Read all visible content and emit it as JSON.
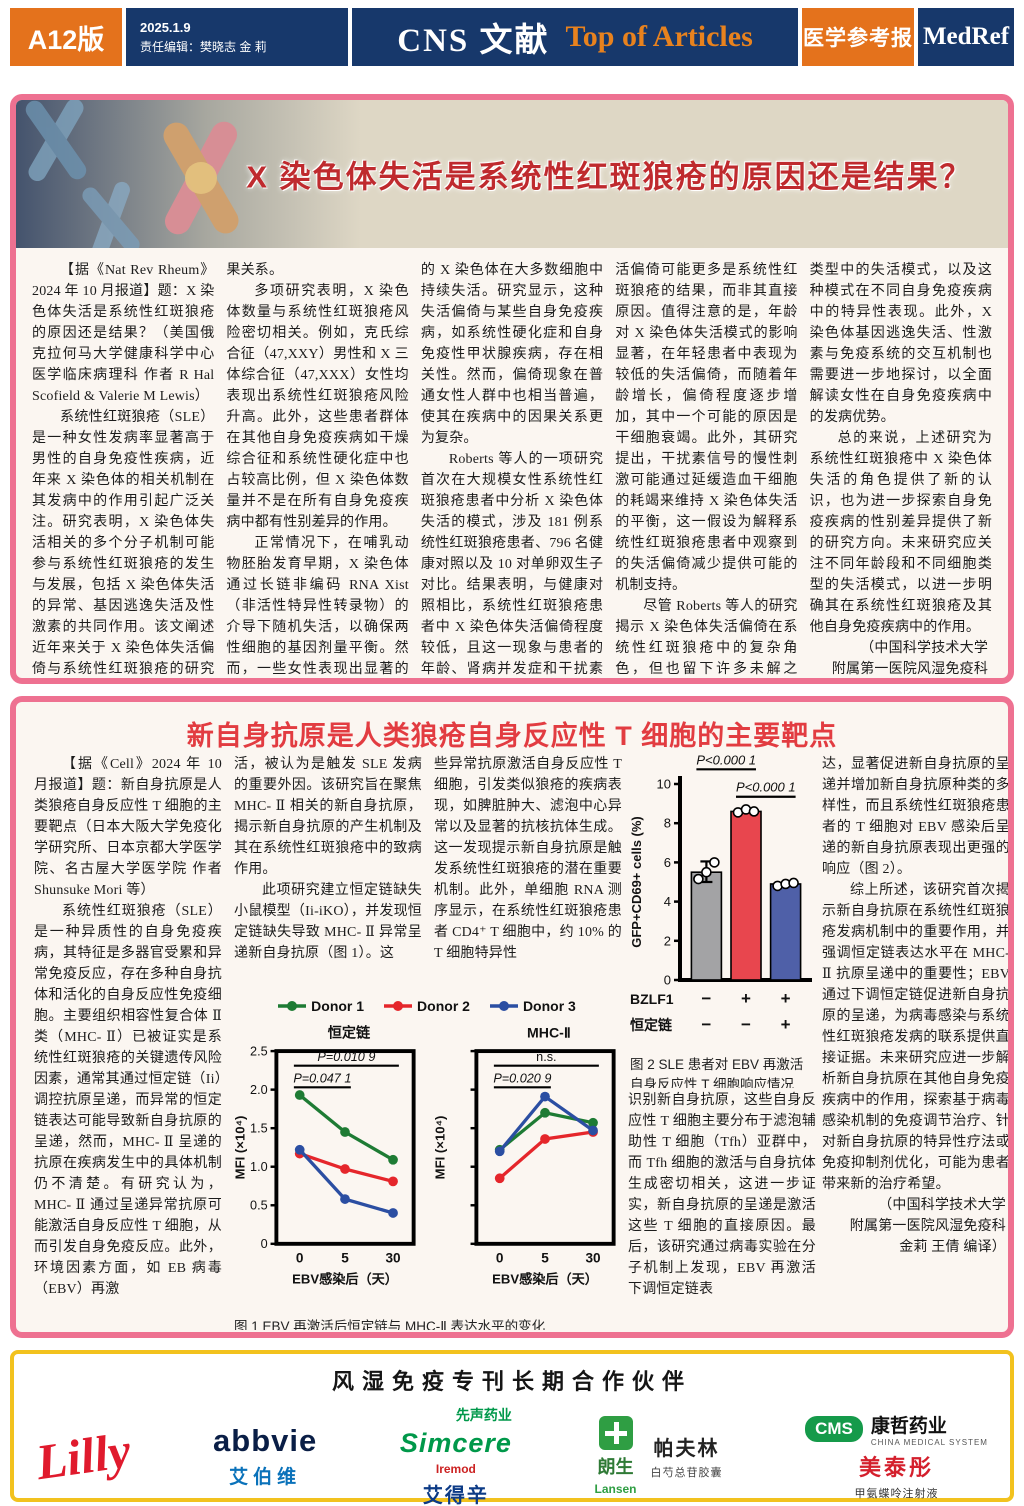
{
  "header": {
    "edition": "A12版",
    "date": "2025.1.9",
    "editors": "责任编辑：樊晓志 金 莉",
    "masthead_cn": "CNS 文献",
    "masthead_en": "Top of Articles",
    "paper_cn": "医学参考报",
    "paper_en": "MedRef"
  },
  "colors": {
    "navy": "#17386b",
    "orange": "#e4721c",
    "pink_border": "#ee7191",
    "headline_red": "#bf2a2e",
    "title2_red": "#e23c41",
    "gold_border": "#f2c21e"
  },
  "article1": {
    "title": "X 染色体失活是系统性红斑狼疮的原因还是结果？",
    "cols": [
      [
        {
          "indent": true,
          "text": "【据《Nat Rev Rheum》2024 年 10 月报道】题：X 染色体失活是系统性红斑狼疮的原因还是结果？（美国俄克拉何马大学健康科学中心医学临床病理科 作者 R Hal Scofield & Valerie M Lewis）"
        },
        {
          "indent": true,
          "text": "系统性红斑狼疮（SLE）是一种女性发病率显著高于男性的自身免疫性疾病，近年来 X 染色体的相关机制在其发病中的作用引起广泛关注。研究表明，X 染色体失活相关的多个分子机制可能参与系统性红斑狼疮的发生与发展，包括 X 染色体失活的异常、基因逃逸失活及性激素的共同作用。该文阐述近年来关于 X 染色体失活偏倚与系统性红斑狼疮的研究进展，分析其在疾病中的因"
        }
      ],
      [
        {
          "indent": false,
          "text": "果关系。"
        },
        {
          "indent": true,
          "text": "多项研究表明，X 染色体数量与系统性红斑狼疮风险密切相关。例如，克氏综合征（47,XXY）男性和 X 三体综合征（47,XXX）女性均表现出系统性红斑狼疮风险升高。此外，这些患者群体在其他自身免疫疾病如干燥综合征和系统性硬化症中也占较高比例，但 X 染色体数量并不是在所有自身免疫疾病中都有性别差异的作用。"
        },
        {
          "indent": true,
          "text": "正常情况下，在哺乳动物胚胎发育早期，X 染色体通过长链非编码 RNA Xist（非活性特异性转录物）的介导下随机失活，以确保两性细胞的基因剂量平衡。然而，一些女性表现出显著的失活偏倚，即特定"
        }
      ],
      [
        {
          "indent": false,
          "text": "的 X 染色体在大多数细胞中持续失活。研究显示，这种失活偏倚与某些自身免疫疾病，如系统性硬化症和自身免疫性甲状腺疾病，存在相关性。然而，偏倚现象在普通女性人群中也相当普遍，使其在疾病中的因果关系更为复杂。"
        },
        {
          "indent": true,
          "text": "Roberts 等人的一项研究首次在大规模女性系统性红斑狼疮患者中分析 X 染色体失活的模式，涉及 181 例系统性红斑狼疮患者、796 名健康对照以及 10 对单卵双生子对比。结果表明，与健康对照相比，系统性红斑狼疮患者中 X 染色体失活偏倚程度较低，且这一现象与患者的年龄、肾病并发症和干扰素基因表达存在显著关联。这一发现暗示 X 染色体失"
        }
      ],
      [
        {
          "indent": false,
          "text": "活偏倚可能更多是系统性红斑狼疮的结果，而非其直接原因。值得注意的是，年龄对 X 染色体失活模式的影响显著，在年轻患者中表现为较低的失活偏倚，而随着年龄增长，偏倚程度逐步增加，其中一个可能的原因是干细胞衰竭。此外，其研究提出，干扰素信号的慢性刺激可能通过延缓造血干细胞的耗竭来维持 X 染色体失活的平衡，这一假设为解释系统性红斑狼疮患者中观察到的失活偏倚减少提供可能的机制支持。"
        },
        {
          "indent": true,
          "text": "尽管 Roberts 等人的研究揭示 X 染色体失活偏倚在系统性红斑狼疮中的复杂角色，但也留下许多未解之谜。未来研究需要更广泛地关注不同细胞"
        }
      ],
      [
        {
          "indent": false,
          "text": "类型中的失活模式，以及这种模式在不同自身免疫疾病中的特异性表现。此外，X 染色体基因逃逸失活、性激素与免疫系统的交互机制也需要进一步地探讨，以全面解读女性在自身免疫疾病中的发病优势。"
        },
        {
          "indent": true,
          "text": "总的来说，上述研究为系统性红斑狼疮中 X 染色体失活的角色提供了新的认识，也为进一步探索自身免疫疾病的性别差异提供了新的研究方向。未来研究应关注不同年龄段和不同细胞类型的失活模式，以进一步明确其在系统性红斑狼疮及其他自身免疫疾病中的作用。"
        },
        {
          "indent": false,
          "align": "right",
          "text": "（中国科学技术大学"
        },
        {
          "indent": false,
          "align": "right",
          "text": "附属第一医院风湿免疫科"
        },
        {
          "indent": false,
          "align": "right",
          "text": "金莉 王倩 编译）"
        }
      ]
    ]
  },
  "article2": {
    "title": "新自身抗原是人类狼疮自身反应性 T 细胞的主要靶点",
    "cols": [
      [
        {
          "indent": true,
          "text": "【据《Cell》2024 年 10 月报道】题：新自身抗原是人类狼疮自身反应性 T 细胞的主要靶点（日本大阪大学免疫化学研究所、日本京都大学医学院、名古屋大学医学院 作者 Shunsuke Mori 等）"
        },
        {
          "indent": true,
          "text": "系统性红斑狼疮（SLE）是一种异质性的自身免疫疾病，其特征是多器官受累和异常免疫反应，存在多种自身抗体和活化的自身反应性免疫细胞。主要组织相容性复合体 Ⅱ 类（MHC- Ⅱ）已被证实是系统性红斑狼疮的关键遗传风险因素，通常其通过恒定链（Ii）调控抗原呈递，而异常的恒定链表达可能导致新自身抗原的呈递，然而，MHC- Ⅱ 呈递的抗原在疾病发生中的具体机制仍不清楚。有研究认为，MHC- Ⅱ 通过呈递异常抗原可能激活自身反应性 T 细胞，从而引发自身免疫反应。此外，环境因素方面，如 EB 病毒（EBV）再激"
        }
      ],
      [
        {
          "indent": false,
          "text": "活，被认为是触发 SLE 发病的重要外因。该研究旨在聚焦 MHC- Ⅱ 相关的新自身抗原，揭示新自身抗原的产生机制及其在系统性红斑狼疮中的致病作用。"
        },
        {
          "indent": true,
          "text": "此项研究建立恒定链缺失小鼠模型（Ii-iKO），并发现恒定链缺失导致 MHC- Ⅱ 异常呈递新自身抗原（图 1）。这"
        }
      ],
      [
        {
          "indent": false,
          "text": "些异常抗原激活自身反应性 T 细胞，引发类似狼疮的疾病表现，如脾脏肿大、滤泡中心异常以及显著的抗核抗体生成。这一发现提示新自身抗原是触发系统性红斑狼疮的潜在重要机制。此外，单细胞 RNA 测序显示，在系统性红斑狼疮患者 CD4⁺ T 细胞中，约 10% 的 T 细胞特异性"
        }
      ],
      [
        {
          "indent": false,
          "text": "识别新自身抗原，这些自身反应性 T 细胞主要分布于滤泡辅助性 T 细胞（Tfh）亚群中，而 Tfh 细胞的激活与自身抗体生成密切相关，这进一步证实，新自身抗原的呈递是激活这些 T 细胞的直接原因。最后，该研究通过病毒实验在分子机制上发现，EBV 再激活下调恒定链表"
        }
      ],
      [
        {
          "indent": false,
          "text": "达，显著促进新自身抗原的呈递并增加新自身抗原种类的多样性，而且系统性红斑狼疮患者的 T 细胞对 EBV 感染后呈递的新自身抗原表现出更强的响应（图 2）。"
        },
        {
          "indent": true,
          "text": "综上所述，该研究首次揭示新自身抗原在系统性红斑狼疮发病机制中的重要作用，并强调恒定链表达水平在 MHC- Ⅱ 抗原呈递中的重要性；EBV 通过下调恒定链促进新自身抗原的呈递，为病毒感染与系统性红斑狼疮发病的联系提供直接证据。未来研究应进一步解析新自身抗原在其他自身免疫疾病中的作用，探索基于病毒感染机制的免疫调节治疗、针对新自身抗原的特异性疗法或免疫抑制剂优化，可能为患者带来新的治疗希望。"
        },
        {
          "indent": false,
          "align": "right",
          "text": "（中国科学技术大学"
        },
        {
          "indent": false,
          "align": "right",
          "text": "附属第一医院风湿免疫科"
        },
        {
          "indent": false,
          "align": "right",
          "text": "金莉 王倩 编译）"
        }
      ]
    ],
    "figures": {
      "fig1_caption": "图 1  EBV 再激活后恒定链与 MHC-Ⅱ 表达水平的变化",
      "fig2_caption_line1": "图 2  SLE 患者对 EBV 再激活",
      "fig2_caption_line2": "自身反应性 T 细胞响应情况"
    }
  },
  "chart_data": [
    {
      "type": "line",
      "title": "恒定链",
      "xlabel": "EBV感染后（天）",
      "ylabel": "MFI (×10⁴)",
      "x_categories": [
        "0",
        "5",
        "30"
      ],
      "ylim": [
        0,
        2.5
      ],
      "yticks": [
        0,
        0.5,
        1.0,
        1.5,
        2.0,
        2.5
      ],
      "ytick_labels": [
        "0",
        "0.5",
        "1.0",
        "1.5",
        "2.0",
        "2.5"
      ],
      "show_ytick_labels": true,
      "grid": false,
      "series": [
        {
          "name": "Donor 1",
          "color": "#1e7b34",
          "values": [
            1.93,
            1.45,
            1.09
          ]
        },
        {
          "name": "Donor 2",
          "color": "#e5262b",
          "values": [
            1.17,
            0.97,
            0.81
          ]
        },
        {
          "name": "Donor 3",
          "color": "#2b4ea2",
          "values": [
            1.22,
            0.58,
            0.4
          ]
        }
      ],
      "sig": [
        {
          "label": "P=0.010 9",
          "x": [
            0,
            2
          ],
          "y": 2.31
        },
        {
          "label": "P=0.047 1",
          "x": [
            0,
            1
          ],
          "y": 2.03
        }
      ]
    },
    {
      "type": "line",
      "title": "MHC-Ⅱ",
      "xlabel": "EBV感染后（天）",
      "ylabel": "MFI (×10⁴)",
      "x_categories": [
        "0",
        "5",
        "30"
      ],
      "ylim": [
        0,
        2.5
      ],
      "yticks": [
        0,
        0.5,
        1.0,
        1.5,
        2.0,
        2.5
      ],
      "ytick_labels": [
        "0",
        "0.5",
        "1.0",
        "1.5",
        "2.0",
        "2.5"
      ],
      "show_ytick_labels": false,
      "grid": false,
      "series": [
        {
          "name": "Donor 1",
          "color": "#1e7b34",
          "values": [
            1.22,
            1.7,
            1.57
          ]
        },
        {
          "name": "Donor 2",
          "color": "#e5262b",
          "values": [
            0.85,
            1.36,
            1.45
          ]
        },
        {
          "name": "Donor 3",
          "color": "#2b4ea2",
          "values": [
            1.2,
            1.91,
            1.47
          ]
        }
      ],
      "sig": [
        {
          "label": "n.s.",
          "x": [
            0,
            2
          ],
          "y": 2.31
        },
        {
          "label": "P=0.020 9",
          "x": [
            0,
            1
          ],
          "y": 2.03
        }
      ]
    },
    {
      "type": "bar",
      "ylabel": "GFP+CD69+ cells (%)",
      "ylim": [
        0,
        10
      ],
      "yticks": [
        0,
        2,
        4,
        6,
        8,
        10
      ],
      "values": [
        5.5,
        8.6,
        4.9
      ],
      "colors": [
        "#a3a3a5",
        "#e8464e",
        "#4f60a8"
      ],
      "points": [
        [
          5.15,
          5.5,
          6.0
        ],
        [
          8.55,
          8.7,
          8.6
        ],
        [
          4.8,
          4.9,
          4.95
        ]
      ],
      "error": [
        {
          "bar": 0,
          "center": 5.5,
          "plus": 0.55,
          "minus": 0.5
        }
      ],
      "sig": [
        {
          "label": "P<0.000 1",
          "bars": [
            0,
            1
          ],
          "y": 10.75
        },
        {
          "label": "P<0.000 1",
          "bars": [
            1,
            2
          ],
          "y": 9.35
        }
      ],
      "xrows": [
        {
          "label": "BZLF1",
          "values": [
            "−",
            "+",
            "+"
          ]
        },
        {
          "label": "恒定链",
          "values": [
            "−",
            "−",
            "+"
          ]
        }
      ]
    }
  ],
  "sponsors": {
    "title": "风湿免疫专刊长期合作伙伴",
    "lilly": "Lilly",
    "abbvie_en": "abbvie",
    "abbvie_cn": "艾伯维",
    "simcere_cn": "先声药业",
    "simcere_en": "Simcere",
    "iremod": "Iremod",
    "aidexin": "艾得辛",
    "lansen_cn": "朗生",
    "lansen_en": "Lansen",
    "pafulin": "帕夫林",
    "pafulin_sub": "白芍总苷胶囊",
    "cms": "CMS",
    "cms_cn": "康哲药业",
    "cms_sub": "CHINA MEDICAL SYSTEM",
    "meitaitong": "美泰彤",
    "mtt_sub": "甲氨蝶呤注射液"
  }
}
